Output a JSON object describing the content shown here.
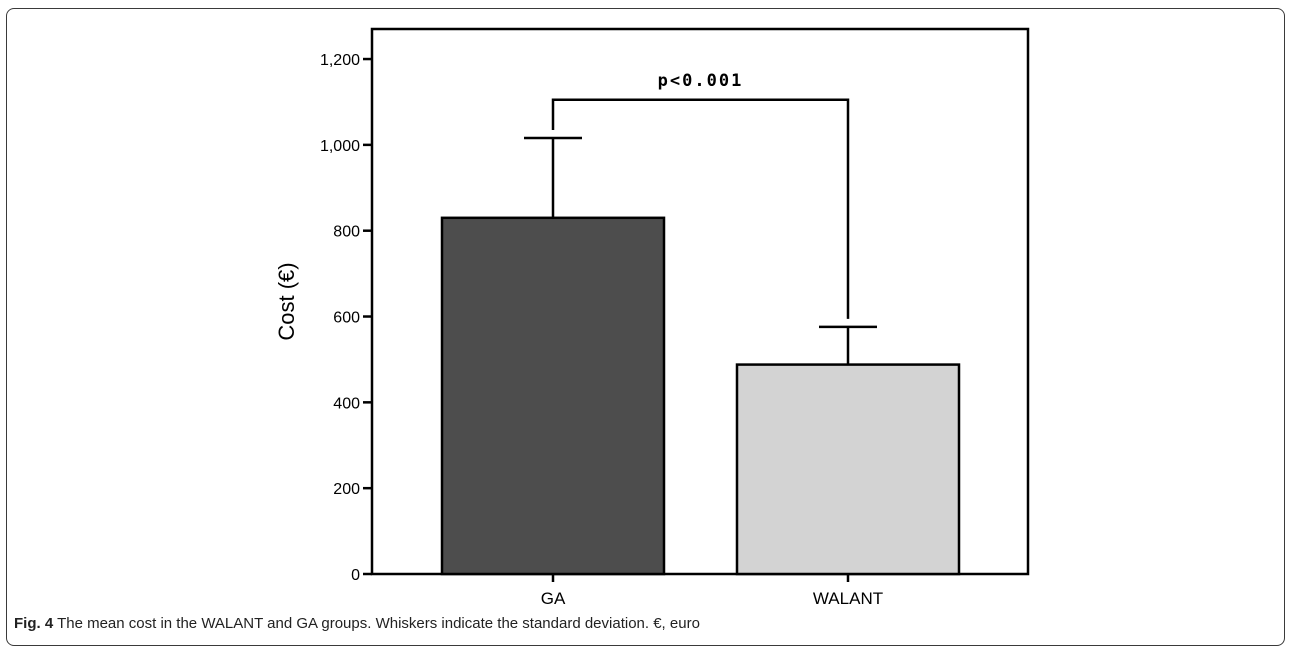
{
  "figure": {
    "label": "Fig. 4",
    "caption": "The mean cost in the WALANT and GA groups. Whiskers indicate the standard deviation. €, euro"
  },
  "chart_data": {
    "type": "bar",
    "categories": [
      "GA",
      "WALANT"
    ],
    "values": [
      830,
      488
    ],
    "error_sd": [
      186,
      88
    ],
    "colors": [
      "#4d4d4d",
      "#d3d3d3"
    ],
    "ylabel": "Cost (€)",
    "xlabel": "",
    "ylim": [
      0,
      1270
    ],
    "yticks": [
      0,
      200,
      400,
      600,
      800,
      1000,
      1200
    ],
    "ytick_labels": [
      "0",
      "200",
      "400",
      "600",
      "800",
      "1,000",
      "1,200"
    ],
    "grid": false,
    "significance": {
      "between": [
        "GA",
        "WALANT"
      ],
      "label": "p<0.001",
      "bracket_y": 1105
    }
  }
}
